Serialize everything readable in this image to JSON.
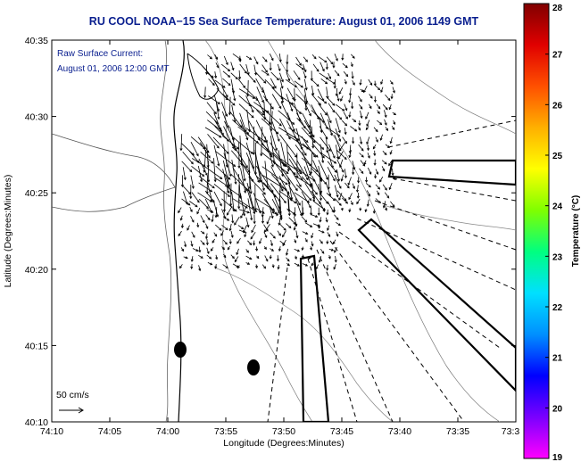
{
  "title": "RU COOL  NOAA−15  Sea Surface Temperature:  August 01, 2006 1149 GMT",
  "annotation": {
    "line1": "Raw Surface Current:",
    "line2": "August 01, 2006 12:00 GMT"
  },
  "scale_label": "50 cm/s",
  "x_axis": {
    "label": "Longitude (Degrees:Minutes)",
    "ticks": [
      "74:10",
      "74:05",
      "74:00",
      "73:55",
      "73:50",
      "73:45",
      "73:40",
      "73:35",
      "73:3"
    ]
  },
  "y_axis": {
    "label": "Latitude (Degrees:Minutes)",
    "ticks": [
      "40:10",
      "40:15",
      "40:20",
      "40:25",
      "40:30",
      "40:35"
    ]
  },
  "colorbar": {
    "label": "Temperature (°C)",
    "ticks": [
      "19",
      "20",
      "21",
      "22",
      "23",
      "24",
      "25",
      "26",
      "27",
      "28"
    ],
    "colors": [
      "#ff00ff",
      "#7a00ff",
      "#0000ff",
      "#0090ff",
      "#00e0ff",
      "#00ff80",
      "#7fff00",
      "#ffff00",
      "#ffb000",
      "#ff5000",
      "#e00000",
      "#800000"
    ]
  }
}
